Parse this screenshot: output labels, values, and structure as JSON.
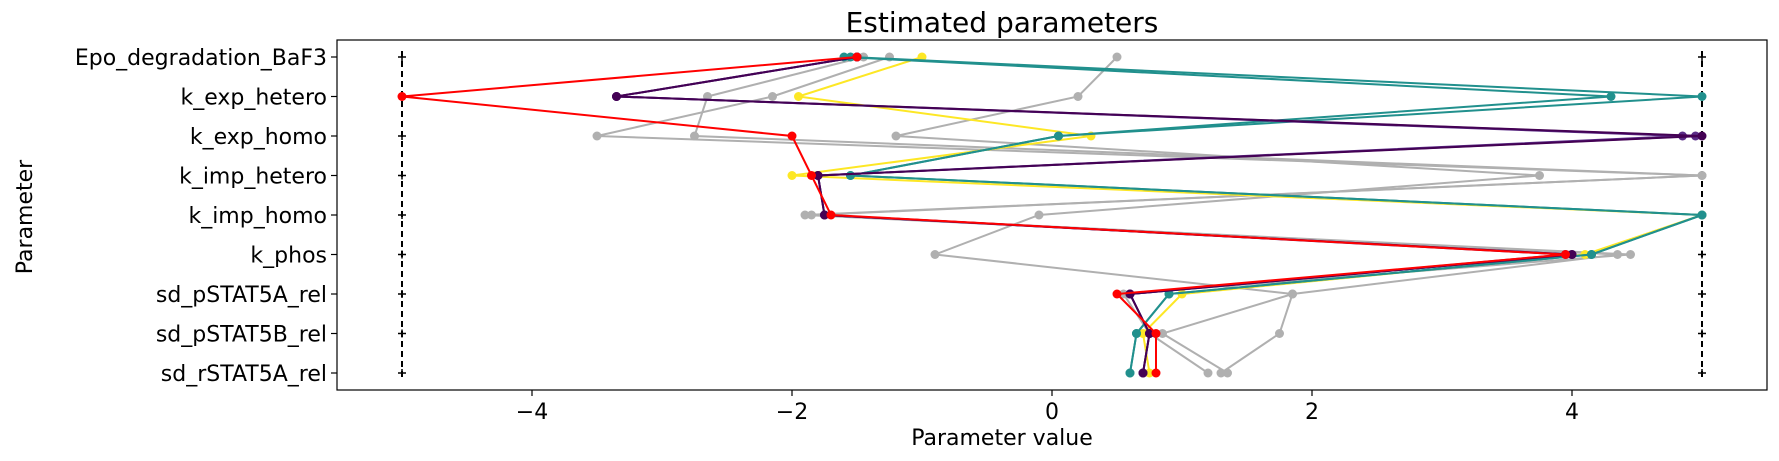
{
  "chart_data": {
    "type": "line",
    "title": "Estimated parameters",
    "xlabel": "Parameter value",
    "ylabel": "Parameter",
    "xlim": [
      -5.5,
      5.5
    ],
    "xticks": [
      -4,
      -2,
      0,
      2,
      4
    ],
    "xtick_labels": [
      "−4",
      "−2",
      "0",
      "2",
      "4"
    ],
    "bounds": {
      "lower": -5,
      "upper": 5
    },
    "parameters": [
      "Epo_degradation_BaF3",
      "k_exp_hetero",
      "k_exp_homo",
      "k_imp_hetero",
      "k_imp_homo",
      "k_phos",
      "sd_pSTAT5A_rel",
      "sd_pSTAT5B_rel",
      "sd_rSTAT5A_rel"
    ],
    "grid": false,
    "legend": "none",
    "colors": {
      "best": "#ff0000",
      "dark": "#440154",
      "purple": "#5b2d87",
      "teal": "#21908d",
      "yellow": "#fde725",
      "gray": "#b0b0b0"
    },
    "series": [
      {
        "color": "gray",
        "values": [
          0.5,
          0.2,
          -1.2,
          3.75,
          -0.1,
          -0.9,
          1.85,
          1.75,
          1.3
        ]
      },
      {
        "color": "gray",
        "values": [
          -1.25,
          -2.15,
          -3.5,
          5.0,
          -1.9,
          4.35,
          1.85,
          0.85,
          1.35
        ]
      },
      {
        "color": "gray",
        "values": [
          -1.45,
          -2.65,
          -2.75,
          5.0,
          -1.85,
          4.45,
          0.55,
          0.75,
          1.2
        ]
      },
      {
        "color": "yellow",
        "values": [
          -1.0,
          -1.95,
          0.3,
          -2.0,
          5.0,
          4.1,
          1.0,
          0.7,
          0.75
        ]
      },
      {
        "color": "teal",
        "values": [
          -1.6,
          4.3,
          0.05,
          -1.55,
          5.0,
          4.15,
          0.9,
          0.65,
          0.6
        ]
      },
      {
        "color": "teal",
        "values": [
          -1.55,
          5.0,
          0.05,
          -1.55,
          5.0,
          4.15,
          0.9,
          0.65,
          0.6
        ]
      },
      {
        "color": "purple",
        "values": [
          -1.5,
          -3.35,
          4.85,
          -1.8,
          -1.75,
          4.0,
          0.6,
          0.75,
          0.7
        ]
      },
      {
        "color": "purple",
        "values": [
          -1.5,
          -3.35,
          4.95,
          -1.8,
          -1.75,
          3.95,
          0.6,
          0.75,
          0.7
        ]
      },
      {
        "color": "dark",
        "values": [
          -1.5,
          -3.35,
          5.0,
          -1.8,
          -1.75,
          4.0,
          0.6,
          0.75,
          0.7
        ]
      },
      {
        "color": "best",
        "values": [
          -1.5,
          -5.0,
          -2.0,
          -1.85,
          -1.7,
          3.95,
          0.5,
          0.8,
          0.8
        ]
      }
    ]
  }
}
